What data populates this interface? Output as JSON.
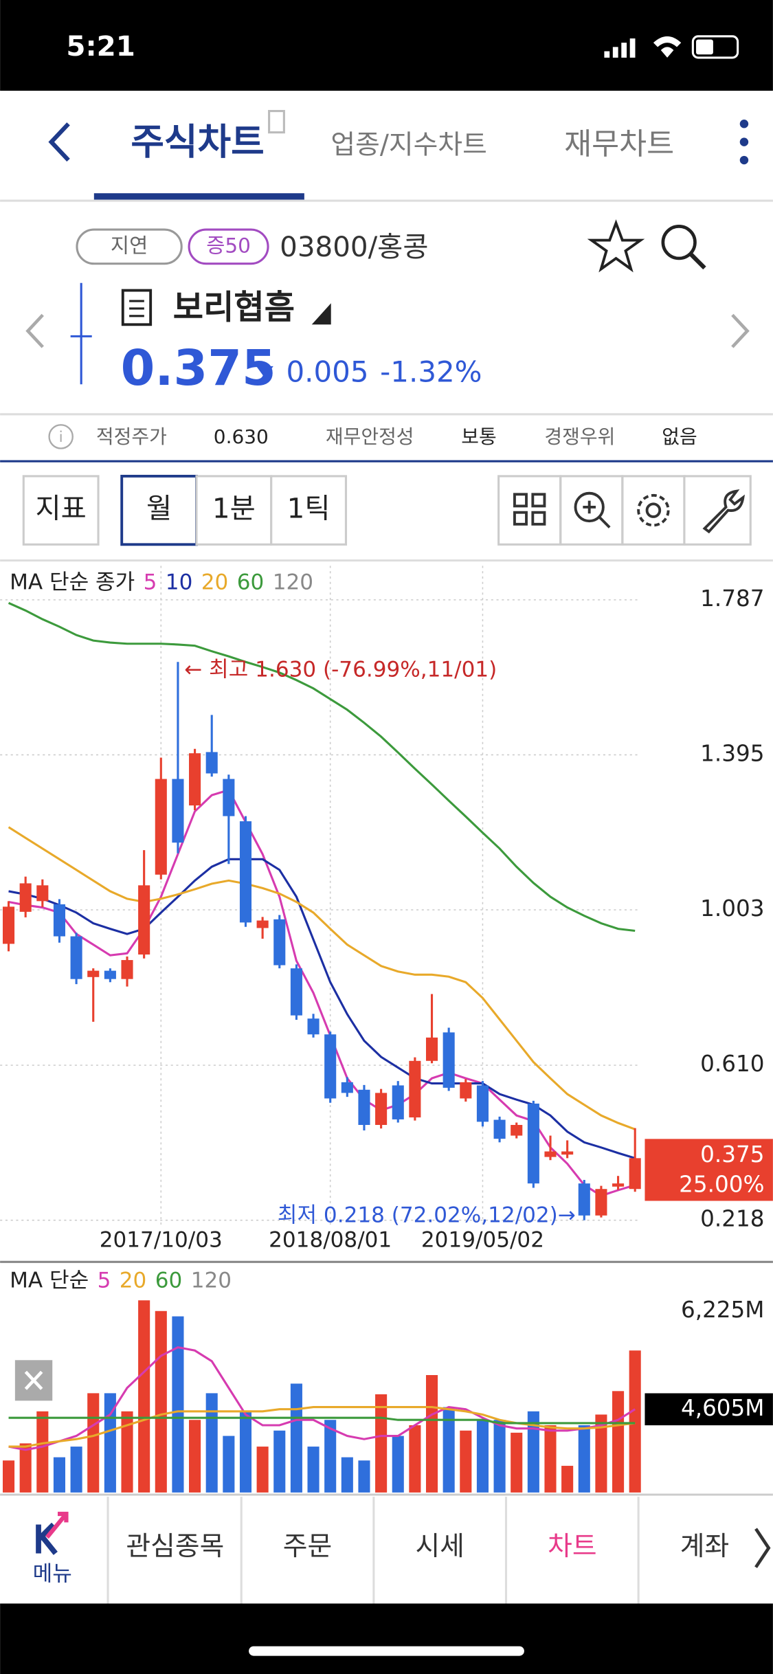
{
  "ui": {
    "status_time": "5:21",
    "tabs": [
      "주식차트",
      "업종/지수차트",
      "재무차트"
    ],
    "badges": [
      "지연",
      "증50"
    ],
    "code": "03800/홍콩",
    "name": "보리협흠",
    "price": "0.375",
    "change": "0.005",
    "change_pct": "-1.32%",
    "info": [
      "적정주가",
      "0.630",
      "재무안정성",
      "보통",
      "경쟁우위",
      "없음"
    ],
    "buttons": [
      "지표",
      "월",
      "1분",
      "1틱"
    ],
    "nav": [
      "메뉴",
      "관심종목",
      "주문",
      "시세",
      "차트",
      "계좌"
    ]
  },
  "chart_data": [
    {
      "type": "candlestick",
      "legend_title": "MA 단순 종가",
      "categories": [
        null,
        null,
        null,
        null,
        null,
        null,
        null,
        null,
        null,
        "2017/10/03",
        null,
        null,
        null,
        null,
        null,
        null,
        null,
        null,
        null,
        "2018/08/01",
        null,
        null,
        null,
        null,
        null,
        null,
        null,
        null,
        "2019/05/02",
        null,
        null,
        null,
        null,
        null,
        null,
        null,
        null,
        null
      ],
      "open": [
        0.917,
        0.998,
        1.025,
        1.017,
        0.936,
        0.833,
        0.849,
        0.828,
        0.89,
        1.092,
        1.334,
        1.267,
        1.402,
        1.334,
        1.227,
        0.957,
        0.979,
        0.855,
        0.728,
        0.688,
        0.567,
        0.548,
        0.459,
        0.559,
        0.478,
        0.621,
        0.693,
        0.526,
        0.559,
        0.472,
        0.432,
        0.513,
        0.378,
        0.384,
        0.311,
        0.23,
        0.303,
        0.297
      ],
      "high": [
        1.025,
        1.087,
        1.08,
        1.03,
        0.945,
        0.855,
        0.855,
        0.885,
        1.154,
        1.388,
        1.63,
        1.41,
        1.496,
        1.345,
        1.24,
        0.985,
        0.99,
        0.865,
        0.74,
        0.695,
        0.58,
        0.56,
        0.55,
        0.57,
        0.63,
        0.79,
        0.705,
        0.575,
        0.57,
        0.48,
        0.465,
        0.52,
        0.432,
        0.42,
        0.32,
        0.305,
        0.33,
        0.451
      ],
      "low": [
        0.898,
        0.984,
        1.01,
        0.92,
        0.815,
        0.72,
        0.82,
        0.809,
        0.88,
        1.08,
        1.146,
        1.255,
        1.34,
        1.119,
        0.96,
        0.93,
        0.855,
        0.725,
        0.68,
        0.515,
        0.53,
        0.445,
        0.45,
        0.465,
        0.47,
        0.615,
        0.545,
        0.518,
        0.455,
        0.415,
        0.425,
        0.3,
        0.37,
        0.375,
        0.218,
        0.225,
        0.295,
        0.29
      ],
      "close": [
        1.011,
        1.07,
        1.065,
        0.936,
        0.828,
        0.849,
        0.828,
        0.876,
        1.065,
        1.334,
        1.173,
        1.399,
        1.348,
        1.24,
        0.971,
        0.976,
        0.863,
        0.736,
        0.688,
        0.526,
        0.54,
        0.459,
        0.54,
        0.473,
        0.621,
        0.68,
        0.553,
        0.567,
        0.467,
        0.424,
        0.459,
        0.311,
        0.392,
        0.392,
        0.23,
        0.297,
        0.311,
        0.375
      ],
      "up_color": "#e8402e",
      "down_color": "#2f6fdc",
      "ma": [
        {
          "name": "5",
          "color": "#d63bb0",
          "values": [
            1.023,
            1.015,
            1.009,
            0.996,
            0.942,
            0.915,
            0.888,
            0.893,
            0.955,
            1.036,
            1.144,
            1.252,
            1.293,
            1.306,
            1.225,
            1.144,
            1.036,
            0.874,
            0.793,
            0.685,
            0.577,
            0.523,
            0.496,
            0.51,
            0.537,
            0.577,
            0.591,
            0.577,
            0.564,
            0.523,
            0.483,
            0.469,
            0.402,
            0.361,
            0.307,
            0.28,
            0.294,
            0.307
          ]
        },
        {
          "name": "10",
          "color": "#1c2fa3",
          "values": [
            1.05,
            1.042,
            1.031,
            1.015,
            0.996,
            0.969,
            0.955,
            0.942,
            0.955,
            0.996,
            1.036,
            1.077,
            1.112,
            1.131,
            1.131,
            1.131,
            1.104,
            1.036,
            0.928,
            0.82,
            0.739,
            0.672,
            0.631,
            0.604,
            0.577,
            0.564,
            0.564,
            0.564,
            0.564,
            0.537,
            0.523,
            0.51,
            0.483,
            0.442,
            0.415,
            0.402,
            0.388,
            0.375
          ]
        },
        {
          "name": "20",
          "color": "#e8a92a",
          "values": [
            1.212,
            1.185,
            1.158,
            1.131,
            1.104,
            1.077,
            1.05,
            1.031,
            1.023,
            1.031,
            1.042,
            1.055,
            1.069,
            1.077,
            1.069,
            1.058,
            1.044,
            1.023,
            0.996,
            0.955,
            0.915,
            0.888,
            0.861,
            0.847,
            0.839,
            0.839,
            0.834,
            0.82,
            0.78,
            0.726,
            0.672,
            0.618,
            0.577,
            0.537,
            0.51,
            0.483,
            0.464,
            0.448
          ]
        },
        {
          "name": "60",
          "color": "#3c9a3c",
          "values": [
            1.779,
            1.76,
            1.738,
            1.719,
            1.698,
            1.684,
            1.679,
            1.676,
            1.676,
            1.676,
            1.674,
            1.671,
            1.657,
            1.644,
            1.63,
            1.617,
            1.603,
            1.584,
            1.563,
            1.536,
            1.509,
            1.476,
            1.441,
            1.401,
            1.36,
            1.32,
            1.279,
            1.239,
            1.198,
            1.158,
            1.112,
            1.071,
            1.036,
            1.009,
            0.988,
            0.969,
            0.955,
            0.95
          ]
        },
        {
          "name": "120",
          "color": "#888888"
        }
      ],
      "ylim": [
        0.145,
        1.873
      ],
      "yticks": [
        1.787,
        1.395,
        1.003,
        {
          "value": 0.61,
          "label": "0.610"
        },
        0.218
      ],
      "grid": true,
      "high_annotation": "← 최고 1.630 (-76.99%,11/01)",
      "low_annotation": "최저 0.218 (72.02%,12/02)→",
      "price_tag": 0.375,
      "price_tag_pct": "25.00%"
    },
    {
      "type": "bar",
      "legend_title": "MA 단순",
      "values": [
        3761,
        4043,
        4571,
        3814,
        3990,
        4870,
        4870,
        4571,
        6401,
        6225,
        6137,
        4430,
        4870,
        4166,
        4571,
        3990,
        4254,
        5028,
        3990,
        4430,
        3814,
        3761,
        4852,
        4166,
        4342,
        5169,
        4641,
        4254,
        4430,
        4430,
        4219,
        4571,
        4342,
        3673,
        4342,
        4518,
        4905,
        5574
      ],
      "ma": [
        {
          "name": "5",
          "color": "#d63bb0",
          "values": [
            3990,
            3937,
            3990,
            4078,
            4166,
            4342,
            4518,
            4958,
            5222,
            5486,
            5627,
            5574,
            5398,
            4958,
            4518,
            4342,
            4342,
            4430,
            4430,
            4289,
            4166,
            4113,
            4166,
            4166,
            4342,
            4518,
            4641,
            4606,
            4465,
            4342,
            4289,
            4289,
            4254,
            4254,
            4289,
            4342,
            4430,
            4606
          ]
        },
        {
          "name": "20",
          "color": "#e8a92a",
          "values": [
            3990,
            3990,
            4043,
            4078,
            4113,
            4166,
            4254,
            4342,
            4430,
            4518,
            4571,
            4571,
            4571,
            4571,
            4571,
            4571,
            4606,
            4606,
            4641,
            4641,
            4641,
            4641,
            4641,
            4641,
            4641,
            4641,
            4606,
            4571,
            4518,
            4430,
            4377,
            4342,
            4307,
            4289,
            4289,
            4307,
            4342,
            4377
          ]
        },
        {
          "name": "60",
          "color": "#3c9a3c",
          "values": [
            4465,
            4465,
            4465,
            4465,
            4465,
            4465,
            4465,
            4465,
            4465,
            4465,
            4465,
            4465,
            4465,
            4465,
            4465,
            4465,
            4465,
            4465,
            4465,
            4465,
            4465,
            4465,
            4465,
            4430,
            4430,
            4430,
            4430,
            4430,
            4430,
            4377,
            4377,
            4377,
            4377,
            4377,
            4377,
            4377,
            4377,
            4377
          ]
        },
        {
          "name": "120",
          "color": "#888888"
        }
      ],
      "ylim": [
        3233,
        6929
      ],
      "yticks": [
        {
          "value": 6225,
          "label": "6,225M"
        },
        {
          "value": 4605,
          "label": "4,605M"
        }
      ]
    }
  ]
}
